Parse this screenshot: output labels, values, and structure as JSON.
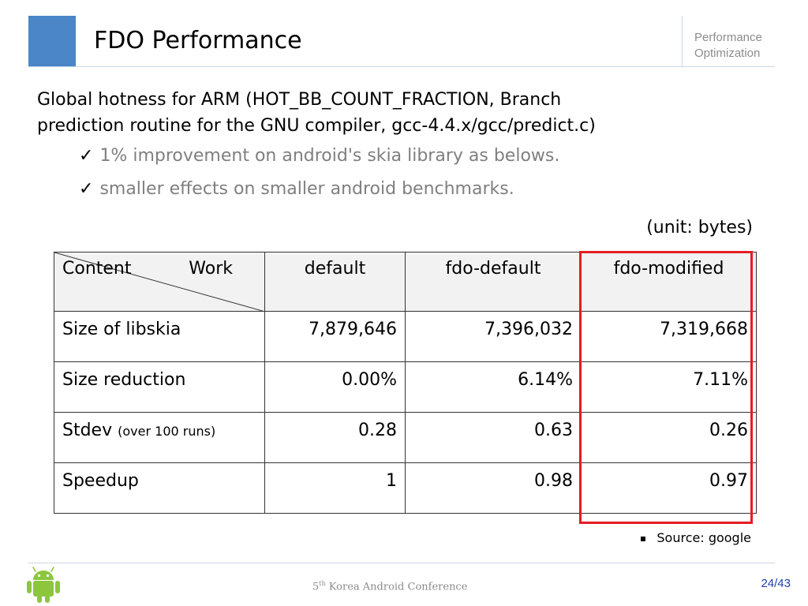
{
  "header": {
    "title": "FDO Performance",
    "section_line1": "Performance",
    "section_line2": "Optimization",
    "accent_color": "#4a86c8"
  },
  "body": {
    "main_line1": "Global hotness for ARM (HOT_BB_COUNT_FRACTION, Branch",
    "main_line2": "prediction routine for the GNU compiler, gcc-4.4.x/gcc/predict.c)",
    "bullets": [
      {
        "mark": "✓",
        "text": "1% improvement on android's skia library as belows."
      },
      {
        "mark": "✓",
        "text": "smaller effects on smaller android benchmarks."
      }
    ],
    "unit_note": "(unit: bytes)"
  },
  "table": {
    "header": {
      "diag_left": "Content",
      "diag_right": "Work",
      "columns": [
        "default",
        "fdo-default",
        "fdo-modified"
      ]
    },
    "rows": [
      {
        "label": "Size of libskia",
        "note": "",
        "values": [
          "7,879,646",
          "7,396,032",
          "7,319,668"
        ]
      },
      {
        "label": "Size reduction",
        "note": "",
        "values": [
          "0.00%",
          "6.14%",
          "7.11%"
        ]
      },
      {
        "label": "Stdev",
        "note": "(over 100 runs)",
        "values": [
          "0.28",
          "0.63",
          "0.26"
        ]
      },
      {
        "label": "Speedup",
        "note": "",
        "values": [
          "1",
          "0.98",
          "0.97"
        ]
      }
    ],
    "highlight_color": "#e51c23"
  },
  "source_note": "Source: google",
  "footer": {
    "conf_prefix": "5",
    "conf_sup": "th",
    "conf_rest": " Korea Android Conference",
    "page": "24/43"
  }
}
